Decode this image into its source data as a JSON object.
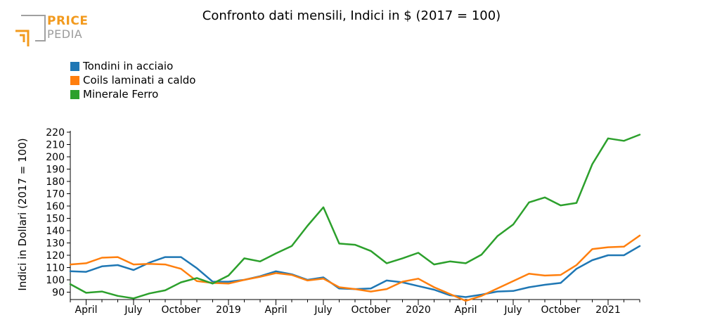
{
  "logo": {
    "word1": "PRICE",
    "word2": "PEDIA"
  },
  "chart_data": {
    "type": "line",
    "title": "Confronto dati mensili, Indici in $ (2017 = 100)",
    "ylabel": "Indici in Dollari (2017 = 100)",
    "xlabel": "",
    "ylim": [
      80,
      220
    ],
    "yticks": [
      90,
      100,
      110,
      120,
      130,
      140,
      150,
      160,
      170,
      180,
      190,
      200,
      210,
      220
    ],
    "x_ticks": [
      {
        "index": 1,
        "label": "April"
      },
      {
        "index": 4,
        "label": "July"
      },
      {
        "index": 7,
        "label": "October"
      },
      {
        "index": 10,
        "label": "2019"
      },
      {
        "index": 13,
        "label": "April"
      },
      {
        "index": 16,
        "label": "July"
      },
      {
        "index": 19,
        "label": "October"
      },
      {
        "index": 22,
        "label": "2020"
      },
      {
        "index": 25,
        "label": "April"
      },
      {
        "index": 28,
        "label": "July"
      },
      {
        "index": 31,
        "label": "October"
      },
      {
        "index": 34,
        "label": "2021"
      }
    ],
    "legend_position": "top-left",
    "grid": false,
    "series": [
      {
        "name": "Tondini in acciaio",
        "color": "#1f77b4",
        "values": [
          107,
          106.5,
          111,
          112,
          108,
          114,
          118.5,
          118.5,
          109.5,
          98.5,
          98.5,
          100,
          103,
          107,
          104.5,
          100,
          102,
          93,
          92.5,
          93,
          99.5,
          98,
          95,
          92,
          87.5,
          86,
          88,
          90.5,
          91,
          94,
          96,
          97.5,
          109,
          116,
          120,
          120,
          127.5
        ]
      },
      {
        "name": "Coils laminati a caldo",
        "color": "#ff7f0e",
        "values": [
          112.5,
          113.5,
          118,
          118.5,
          112.5,
          113,
          112.5,
          109,
          99,
          97.5,
          97,
          100,
          102.5,
          105.5,
          104,
          99.5,
          101,
          94,
          92.5,
          90.5,
          92.5,
          98.5,
          101,
          94,
          88.5,
          83,
          87,
          93,
          99,
          105,
          103.5,
          104,
          112,
          125,
          126.5,
          127,
          136
        ]
      },
      {
        "name": "Minerale Ferro",
        "color": "#2ca02c",
        "values": [
          96.5,
          89.5,
          90.5,
          87,
          85,
          89,
          91.5,
          98,
          101.5,
          97,
          103.5,
          117.5,
          115,
          121.5,
          127.5,
          144,
          159,
          129.5,
          128.5,
          123.5,
          113.5,
          117.5,
          122,
          112.5,
          115,
          113.5,
          120.5,
          135.5,
          145,
          163,
          167,
          160.5,
          162.5,
          194,
          215,
          213,
          218
        ]
      }
    ]
  }
}
